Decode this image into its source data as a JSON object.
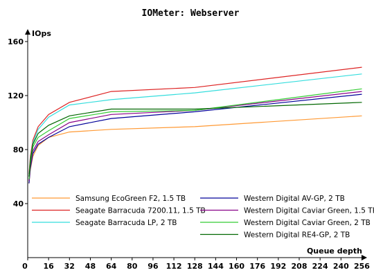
{
  "chart_data": {
    "type": "line",
    "title": "IOMeter: Webserver",
    "xlabel": "Queue depth",
    "ylabel": "IOps",
    "xlim": [
      0,
      260
    ],
    "ylim": [
      0,
      160
    ],
    "grid": false,
    "legend_position": "bottom",
    "x_ticks": [
      0,
      16,
      32,
      48,
      64,
      80,
      96,
      112,
      128,
      144,
      160,
      176,
      192,
      208,
      224,
      240,
      256
    ],
    "y_ticks": [
      40,
      80,
      120,
      160
    ],
    "x": [
      1,
      2,
      4,
      8,
      16,
      32,
      64,
      128,
      256
    ],
    "series": [
      {
        "name": "Samsung EcoGreen F2, 1.5 TB",
        "color": "#ff9933",
        "values": [
          55,
          65,
          75,
          83,
          89,
          93,
          95,
          97,
          105
        ]
      },
      {
        "name": "Seagate Barracuda 7200.11, 1.5 TB",
        "color": "#dd2222",
        "values": [
          62,
          75,
          87,
          97,
          106,
          115,
          123,
          126,
          141
        ]
      },
      {
        "name": "Seagate Barracuda LP, 2 TB",
        "color": "#33dddd",
        "values": [
          60,
          73,
          85,
          95,
          104,
          113,
          117,
          122,
          136
        ]
      },
      {
        "name": "Western Digital AV-GP, 2 TB",
        "color": "#000099",
        "values": [
          55,
          66,
          77,
          84,
          89,
          97,
          103,
          108,
          121
        ]
      },
      {
        "name": "Western Digital Caviar Green, 1.5 TB",
        "color": "#880088",
        "values": [
          57,
          68,
          79,
          86,
          91,
          100,
          106,
          109,
          123
        ]
      },
      {
        "name": "Western Digital Caviar Green, 2 TB",
        "color": "#33cc33",
        "values": [
          58,
          70,
          82,
          89,
          94,
          103,
          108,
          109,
          125
        ]
      },
      {
        "name": "Western Digital RE4-GP, 2 TB",
        "color": "#006600",
        "values": [
          60,
          72,
          84,
          92,
          98,
          105,
          110,
          110,
          115
        ]
      }
    ]
  }
}
